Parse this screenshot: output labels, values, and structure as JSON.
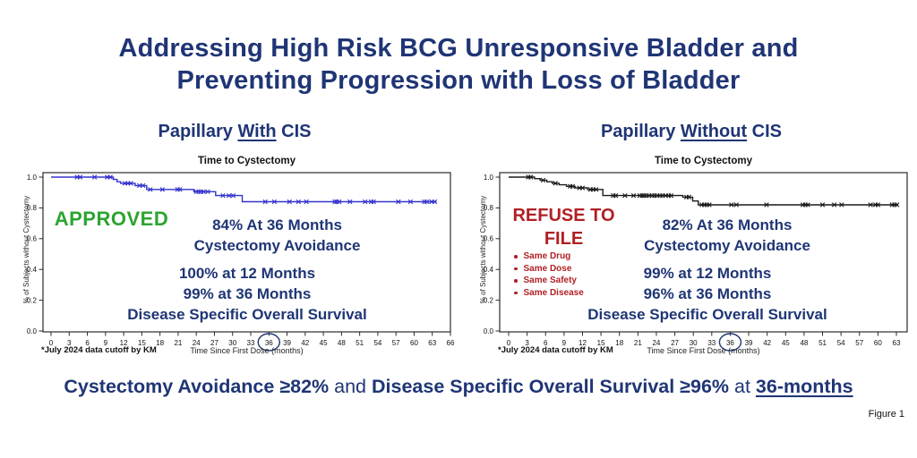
{
  "slide": {
    "title_line1": "Addressing High Risk BCG Unresponsive Bladder and",
    "title_line2": "Preventing Progression with Loss of Bladder",
    "bottom_headline": {
      "seg1": "Cystectomy Avoidance ≥82%",
      "seg2": " and ",
      "seg3": "Disease Specific Overall Survival ≥96%",
      "seg4": " at ",
      "seg5": "36-months"
    },
    "figure_label": "Figure 1",
    "colors": {
      "navy": "#1F3575",
      "green": "#2CA430",
      "red": "#B01F24",
      "curve_blue": "#3333CC",
      "curve_black": "#1A1A1A"
    }
  },
  "chart_data": [
    {
      "type": "line",
      "variant": "kaplan-meier-step",
      "heading": {
        "pre": "Papillary ",
        "underlined": "With",
        "post": " CIS"
      },
      "title": "Time to Cystectomy",
      "xlabel": "Time Since First Dose (months)",
      "ylabel": "% of Subjects without Cystectomy",
      "footnote": "*July 2024 data cutoff by KM",
      "xlim": [
        0,
        66
      ],
      "ylim": [
        0,
        1.0
      ],
      "x_ticks": [
        0,
        3,
        6,
        9,
        12,
        15,
        18,
        21,
        24,
        27,
        30,
        33,
        36,
        39,
        42,
        45,
        48,
        51,
        54,
        57,
        60,
        63,
        66
      ],
      "y_ticks": [
        1.0,
        0.8,
        0.6,
        0.4,
        0.2,
        0.0
      ],
      "circled_x_tick": 36,
      "grid": false,
      "legend": "none",
      "curve_color": "#3333CC",
      "km_steps": [
        [
          0,
          1
        ],
        [
          10.3,
          1
        ],
        [
          10.3,
          0.985
        ],
        [
          10.9,
          0.985
        ],
        [
          10.9,
          0.97
        ],
        [
          11.5,
          0.97
        ],
        [
          11.5,
          0.96
        ],
        [
          13.9,
          0.96
        ],
        [
          13.9,
          0.945
        ],
        [
          15.8,
          0.945
        ],
        [
          15.8,
          0.92
        ],
        [
          23.6,
          0.92
        ],
        [
          23.6,
          0.905
        ],
        [
          27.2,
          0.905
        ],
        [
          27.2,
          0.88
        ],
        [
          31.6,
          0.88
        ],
        [
          31.6,
          0.84
        ],
        [
          63.7,
          0.84
        ]
      ],
      "censor_marks": [
        [
          4.3,
          1
        ],
        [
          4.8,
          1
        ],
        [
          7.2,
          1
        ],
        [
          9.3,
          1
        ],
        [
          9.8,
          1
        ],
        [
          12.2,
          0.96
        ],
        [
          12.7,
          0.96
        ],
        [
          13.2,
          0.96
        ],
        [
          14.6,
          0.945
        ],
        [
          15.2,
          0.945
        ],
        [
          16.4,
          0.92
        ],
        [
          18.4,
          0.92
        ],
        [
          20.9,
          0.92
        ],
        [
          21.3,
          0.92
        ],
        [
          24.0,
          0.905
        ],
        [
          24.4,
          0.905
        ],
        [
          24.8,
          0.905
        ],
        [
          25.2,
          0.905
        ],
        [
          25.9,
          0.905
        ],
        [
          28.4,
          0.88
        ],
        [
          29.4,
          0.88
        ],
        [
          30.1,
          0.88
        ],
        [
          35.4,
          0.84
        ],
        [
          36.9,
          0.84
        ],
        [
          39.4,
          0.84
        ],
        [
          40.9,
          0.84
        ],
        [
          42.2,
          0.84
        ],
        [
          46.9,
          0.84
        ],
        [
          47.2,
          0.84
        ],
        [
          47.6,
          0.84
        ],
        [
          49.4,
          0.84
        ],
        [
          51.9,
          0.84
        ],
        [
          52.9,
          0.84
        ],
        [
          53.3,
          0.84
        ],
        [
          57.4,
          0.84
        ],
        [
          59.4,
          0.84
        ],
        [
          61.7,
          0.84
        ],
        [
          62.1,
          0.84
        ],
        [
          62.9,
          0.84
        ],
        [
          63.4,
          0.84
        ]
      ],
      "annotations": {
        "status": "APPROVED",
        "stat_top": [
          "84% At 36 Months",
          "Cystectomy Avoidance"
        ],
        "stat_bottom": [
          "100% at 12 Months",
          "99% at 36 Months",
          "Disease Specific Overall Survival"
        ]
      },
      "key_values": {
        "cystectomy_avoidance_36mo": "84%",
        "dsos_12mo": "100%",
        "dsos_36mo": "99%"
      }
    },
    {
      "type": "line",
      "variant": "kaplan-meier-step",
      "heading": {
        "pre": "Papillary ",
        "underlined": "Without",
        "post": " CIS"
      },
      "title": "Time to Cystectomy",
      "xlabel": "Time Since First Dose (months)",
      "ylabel": "% of Subjects without Cystectomy",
      "footnote": "*July 2024 data cutoff by KM",
      "xlim": [
        0,
        63
      ],
      "ylim": [
        0,
        1.0
      ],
      "x_ticks": [
        0,
        3,
        6,
        9,
        12,
        15,
        18,
        21,
        24,
        27,
        30,
        33,
        36,
        39,
        42,
        45,
        48,
        51,
        54,
        57,
        60,
        63
      ],
      "y_ticks": [
        1.0,
        0.8,
        0.6,
        0.4,
        0.2,
        0.0
      ],
      "circled_x_tick": 36,
      "grid": false,
      "legend": "none",
      "curve_color": "#1A1A1A",
      "km_steps": [
        [
          0,
          1
        ],
        [
          4.2,
          1
        ],
        [
          4.2,
          0.99
        ],
        [
          5.1,
          0.99
        ],
        [
          5.1,
          0.98
        ],
        [
          6.2,
          0.98
        ],
        [
          6.2,
          0.97
        ],
        [
          7.1,
          0.97
        ],
        [
          7.1,
          0.96
        ],
        [
          8.2,
          0.96
        ],
        [
          8.2,
          0.95
        ],
        [
          9.4,
          0.95
        ],
        [
          9.4,
          0.94
        ],
        [
          10.8,
          0.94
        ],
        [
          10.8,
          0.93
        ],
        [
          12.8,
          0.93
        ],
        [
          12.8,
          0.92
        ],
        [
          15.3,
          0.92
        ],
        [
          15.3,
          0.88
        ],
        [
          28.3,
          0.88
        ],
        [
          28.3,
          0.87
        ],
        [
          29.9,
          0.87
        ],
        [
          29.9,
          0.845
        ],
        [
          30.8,
          0.845
        ],
        [
          30.8,
          0.82
        ],
        [
          63.3,
          0.82
        ]
      ],
      "censor_marks": [
        [
          3.2,
          1
        ],
        [
          3.6,
          1
        ],
        [
          5.6,
          0.98
        ],
        [
          7.6,
          0.96
        ],
        [
          10.0,
          0.94
        ],
        [
          10.4,
          0.94
        ],
        [
          11.5,
          0.93
        ],
        [
          12.0,
          0.93
        ],
        [
          13.3,
          0.92
        ],
        [
          13.7,
          0.92
        ],
        [
          14.2,
          0.92
        ],
        [
          17.0,
          0.88
        ],
        [
          17.4,
          0.88
        ],
        [
          18.9,
          0.88
        ],
        [
          20.3,
          0.88
        ],
        [
          21.3,
          0.88
        ],
        [
          21.7,
          0.88
        ],
        [
          22.0,
          0.88
        ],
        [
          22.4,
          0.88
        ],
        [
          22.8,
          0.88
        ],
        [
          23.3,
          0.88
        ],
        [
          23.7,
          0.88
        ],
        [
          24.1,
          0.88
        ],
        [
          24.6,
          0.88
        ],
        [
          25.0,
          0.88
        ],
        [
          25.5,
          0.88
        ],
        [
          26.0,
          0.88
        ],
        [
          26.4,
          0.88
        ],
        [
          28.9,
          0.87
        ],
        [
          29.3,
          0.87
        ],
        [
          31.4,
          0.82
        ],
        [
          31.8,
          0.82
        ],
        [
          32.2,
          0.82
        ],
        [
          32.6,
          0.82
        ],
        [
          36.2,
          0.82
        ],
        [
          37.0,
          0.82
        ],
        [
          41.9,
          0.82
        ],
        [
          47.8,
          0.82
        ],
        [
          48.2,
          0.82
        ],
        [
          48.6,
          0.82
        ],
        [
          51.0,
          0.82
        ],
        [
          52.9,
          0.82
        ],
        [
          54.1,
          0.82
        ],
        [
          58.8,
          0.82
        ],
        [
          59.6,
          0.82
        ],
        [
          60.0,
          0.82
        ],
        [
          62.3,
          0.82
        ],
        [
          62.7,
          0.82
        ],
        [
          63.1,
          0.82
        ]
      ],
      "annotations": {
        "status_lines": [
          "REFUSE TO",
          "FILE"
        ],
        "bullets": [
          "Same Drug",
          "Same Dose",
          "Same Safety",
          "Same Disease"
        ],
        "stat_top": [
          "82% At 36 Months",
          "Cystectomy Avoidance"
        ],
        "stat_bottom": [
          "99% at 12 Months",
          "96% at 36 Months",
          "Disease Specific Overall Survival"
        ]
      },
      "key_values": {
        "cystectomy_avoidance_36mo": "82%",
        "dsos_12mo": "99%",
        "dsos_36mo": "96%"
      }
    }
  ]
}
